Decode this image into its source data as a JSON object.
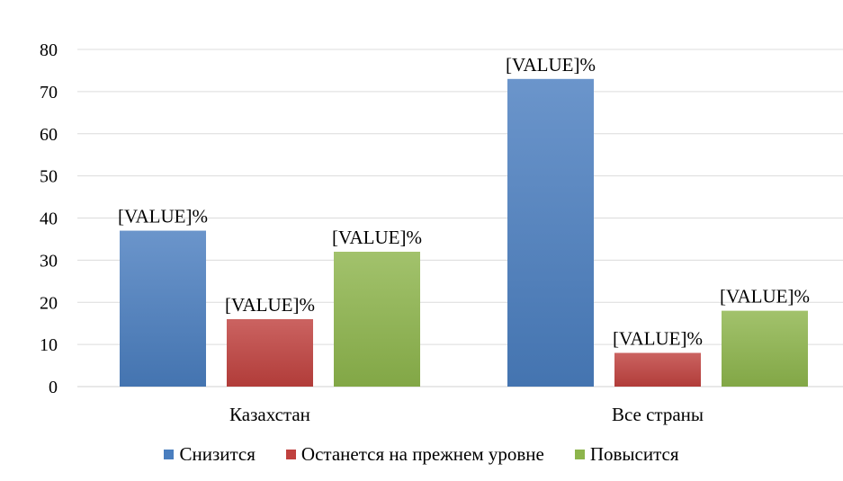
{
  "chart_data": {
    "type": "bar",
    "title": "",
    "xlabel": "",
    "ylabel": "",
    "categories": [
      "Казахстан",
      "Все страны"
    ],
    "series": [
      {
        "name": "Снизится",
        "values": [
          37,
          73
        ],
        "labels": [
          "[VALUE]%",
          "[VALUE]%"
        ],
        "color": "#4a7ebf"
      },
      {
        "name": "Останется на прежнем уровне",
        "values": [
          16,
          8
        ],
        "labels": [
          "[VALUE]%",
          "[VALUE]%"
        ],
        "color": "#c0413e"
      },
      {
        "name": "Повысится",
        "values": [
          32,
          18
        ],
        "labels": [
          "[VALUE]%",
          "[VALUE]%"
        ],
        "color": "#8db54c"
      }
    ],
    "ylim": [
      0,
      80
    ],
    "yticks": [
      0,
      10,
      20,
      30,
      40,
      50,
      60,
      70,
      80
    ],
    "grid": true,
    "legend_position": "bottom"
  }
}
